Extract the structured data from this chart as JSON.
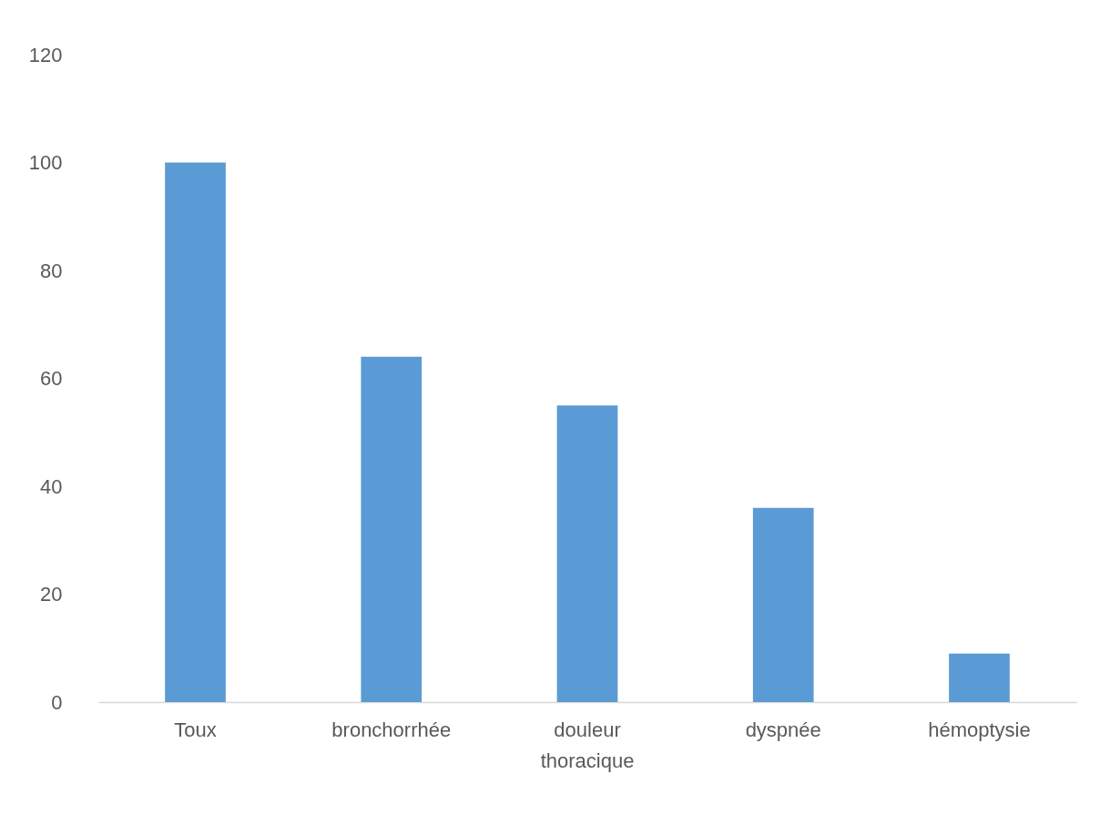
{
  "chart_data": {
    "type": "bar",
    "categories": [
      "Toux",
      "bronchorrhée",
      "douleur thoracique",
      "dyspnée",
      "hémoptysie"
    ],
    "values": [
      100,
      64,
      55,
      36,
      9
    ],
    "color": "#5b9bd5",
    "ylim": [
      0,
      120
    ],
    "yticks": [
      0,
      20,
      40,
      60,
      80,
      100,
      120
    ],
    "grid": false
  }
}
